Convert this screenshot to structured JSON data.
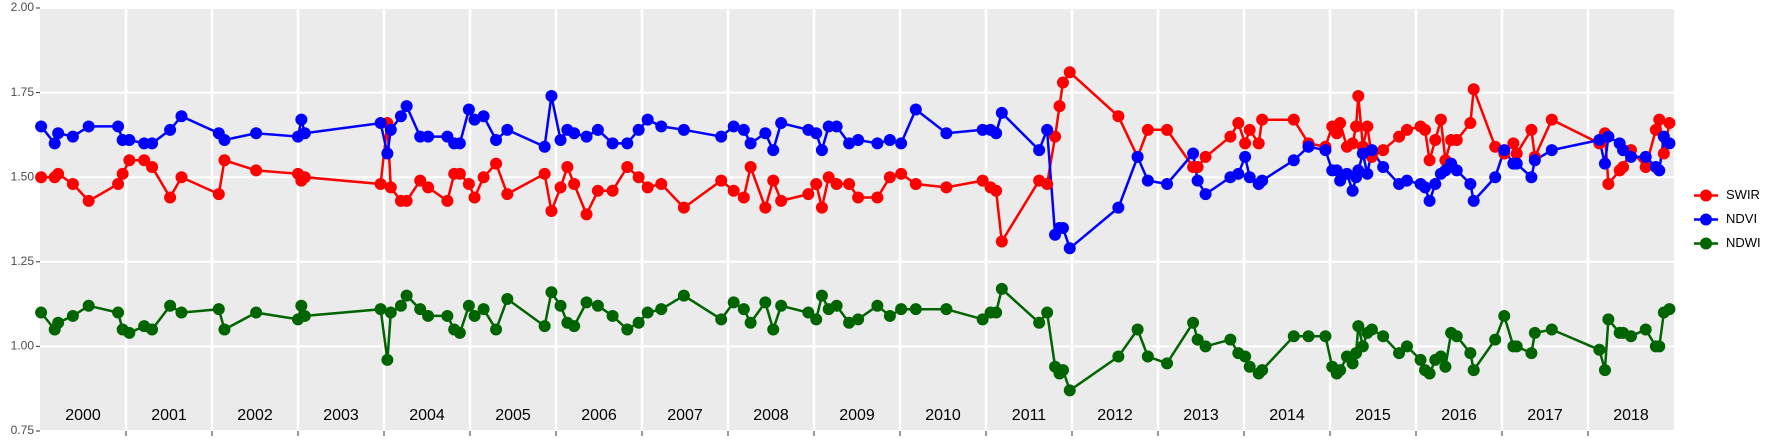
{
  "chart_data": {
    "type": "line",
    "x": [
      2000.013,
      2000.171,
      2000.211,
      2000.382,
      2000.566,
      2000.908,
      2000.961,
      2001.039,
      2001.211,
      2001.303,
      2001.513,
      2001.645,
      2002.079,
      2002.145,
      2002.513,
      2003.0,
      2003.039,
      2003.079,
      2003.961,
      2004.039,
      2004.079,
      2004.197,
      2004.263,
      2004.421,
      2004.513,
      2004.737,
      2004.816,
      2004.882,
      2004.987,
      2005.053,
      2005.158,
      2005.303,
      2005.434,
      2005.868,
      2005.947,
      2006.053,
      2006.132,
      2006.211,
      2006.355,
      2006.487,
      2006.658,
      2006.829,
      2006.961,
      2007.066,
      2007.224,
      2007.487,
      2007.921,
      2008.066,
      2008.184,
      2008.263,
      2008.434,
      2008.526,
      2008.618,
      2008.934,
      2009.026,
      2009.092,
      2009.171,
      2009.263,
      2009.408,
      2009.513,
      2009.737,
      2009.882,
      2010.013,
      2010.184,
      2010.539,
      2010.961,
      2011.053,
      2011.118,
      2011.184,
      2011.618,
      2011.711,
      2011.803,
      2011.855,
      2011.895,
      2011.974,
      2012.539,
      2012.763,
      2012.882,
      2013.105,
      2013.408,
      2013.461,
      2013.553,
      2013.842,
      2013.934,
      2014.013,
      2014.066,
      2014.171,
      2014.211,
      2014.579,
      2014.75,
      2014.947,
      2015.026,
      2015.079,
      2015.118,
      2015.197,
      2015.263,
      2015.303,
      2015.329,
      2015.382,
      2015.434,
      2015.487,
      2015.618,
      2015.803,
      2015.895,
      2016.053,
      2016.105,
      2016.158,
      2016.224,
      2016.289,
      2016.342,
      2016.408,
      2016.474,
      2016.632,
      2016.671,
      2016.921,
      2017.026,
      2017.132,
      2017.171,
      2017.342,
      2017.382,
      2017.579,
      2018.132,
      2018.197,
      2018.237,
      2018.368,
      2018.408,
      2018.5,
      2018.671,
      2018.789,
      2018.829,
      2018.882,
      2018.947
    ],
    "series": [
      {
        "name": "SWIR",
        "color": "#ff0000",
        "values": [
          1.5,
          1.5,
          1.51,
          1.48,
          1.43,
          1.48,
          1.51,
          1.55,
          1.55,
          1.53,
          1.44,
          1.5,
          1.45,
          1.55,
          1.52,
          1.51,
          1.49,
          1.5,
          1.48,
          1.66,
          1.47,
          1.43,
          1.43,
          1.49,
          1.47,
          1.43,
          1.51,
          1.51,
          1.48,
          1.44,
          1.5,
          1.54,
          1.45,
          1.51,
          1.4,
          1.47,
          1.53,
          1.48,
          1.39,
          1.46,
          1.46,
          1.53,
          1.5,
          1.47,
          1.48,
          1.41,
          1.49,
          1.46,
          1.44,
          1.53,
          1.41,
          1.49,
          1.43,
          1.45,
          1.48,
          1.41,
          1.5,
          1.48,
          1.48,
          1.44,
          1.44,
          1.5,
          1.51,
          1.48,
          1.47,
          1.49,
          1.47,
          1.46,
          1.31,
          1.49,
          1.48,
          1.62,
          1.71,
          1.78,
          1.81,
          1.68,
          1.56,
          1.64,
          1.64,
          1.53,
          1.53,
          1.56,
          1.62,
          1.66,
          1.6,
          1.64,
          1.6,
          1.67,
          1.67,
          1.6,
          1.59,
          1.65,
          1.63,
          1.66,
          1.59,
          1.6,
          1.65,
          1.74,
          1.59,
          1.65,
          1.56,
          1.58,
          1.62,
          1.64,
          1.65,
          1.64,
          1.55,
          1.61,
          1.67,
          1.55,
          1.61,
          1.61,
          1.66,
          1.76,
          1.59,
          1.57,
          1.6,
          1.57,
          1.64,
          1.56,
          1.67,
          1.6,
          1.63,
          1.48,
          1.52,
          1.53,
          1.58,
          1.53,
          1.64,
          1.67,
          1.57,
          1.66
        ]
      },
      {
        "name": "NDVI",
        "color": "#0000ff",
        "values": [
          1.65,
          1.6,
          1.63,
          1.62,
          1.65,
          1.65,
          1.61,
          1.61,
          1.6,
          1.6,
          1.64,
          1.68,
          1.63,
          1.61,
          1.63,
          1.62,
          1.67,
          1.63,
          1.66,
          1.57,
          1.64,
          1.68,
          1.71,
          1.62,
          1.62,
          1.62,
          1.6,
          1.6,
          1.7,
          1.67,
          1.68,
          1.61,
          1.64,
          1.59,
          1.74,
          1.61,
          1.64,
          1.63,
          1.62,
          1.64,
          1.6,
          1.6,
          1.64,
          1.67,
          1.65,
          1.64,
          1.62,
          1.65,
          1.64,
          1.6,
          1.63,
          1.58,
          1.66,
          1.64,
          1.63,
          1.58,
          1.65,
          1.65,
          1.6,
          1.61,
          1.6,
          1.61,
          1.6,
          1.7,
          1.63,
          1.64,
          1.64,
          1.63,
          1.69,
          1.58,
          1.64,
          1.33,
          1.35,
          1.35,
          1.29,
          1.41,
          1.56,
          1.49,
          1.48,
          1.57,
          1.49,
          1.45,
          1.5,
          1.51,
          1.56,
          1.5,
          1.48,
          1.49,
          1.55,
          1.59,
          1.58,
          1.52,
          1.52,
          1.49,
          1.51,
          1.46,
          1.5,
          1.52,
          1.57,
          1.51,
          1.58,
          1.53,
          1.48,
          1.49,
          1.48,
          1.47,
          1.43,
          1.48,
          1.51,
          1.52,
          1.54,
          1.52,
          1.48,
          1.43,
          1.5,
          1.58,
          1.54,
          1.54,
          1.5,
          1.55,
          1.58,
          1.61,
          1.54,
          1.62,
          1.6,
          1.58,
          1.56,
          1.56,
          1.53,
          1.52,
          1.62,
          1.6
        ]
      },
      {
        "name": "NDWI",
        "color": "#006400",
        "values": [
          1.1,
          1.05,
          1.07,
          1.09,
          1.12,
          1.1,
          1.05,
          1.04,
          1.06,
          1.05,
          1.12,
          1.1,
          1.11,
          1.05,
          1.1,
          1.08,
          1.12,
          1.09,
          1.11,
          0.96,
          1.1,
          1.12,
          1.15,
          1.11,
          1.09,
          1.09,
          1.05,
          1.04,
          1.12,
          1.09,
          1.11,
          1.05,
          1.14,
          1.06,
          1.16,
          1.12,
          1.07,
          1.06,
          1.13,
          1.12,
          1.09,
          1.05,
          1.07,
          1.1,
          1.11,
          1.15,
          1.08,
          1.13,
          1.11,
          1.07,
          1.13,
          1.05,
          1.12,
          1.1,
          1.08,
          1.15,
          1.11,
          1.12,
          1.07,
          1.08,
          1.12,
          1.09,
          1.11,
          1.11,
          1.11,
          1.08,
          1.1,
          1.1,
          1.17,
          1.07,
          1.1,
          0.94,
          0.92,
          0.93,
          0.87,
          0.97,
          1.05,
          0.97,
          0.95,
          1.07,
          1.02,
          1.0,
          1.02,
          0.98,
          0.97,
          0.94,
          0.92,
          0.93,
          1.03,
          1.03,
          1.03,
          0.94,
          0.92,
          0.93,
          0.97,
          0.95,
          0.98,
          1.06,
          1.0,
          1.04,
          1.05,
          1.03,
          0.98,
          1.0,
          0.96,
          0.93,
          0.92,
          0.96,
          0.97,
          0.94,
          1.04,
          1.03,
          0.98,
          0.93,
          1.02,
          1.09,
          1.0,
          1.0,
          0.98,
          1.04,
          1.05,
          0.99,
          0.93,
          1.08,
          1.04,
          1.04,
          1.03,
          1.05,
          1.0,
          1.0,
          1.1,
          1.11
        ]
      }
    ],
    "xlim": [
      2000,
      2019
    ],
    "x_breaks": [
      2001,
      2002,
      2003,
      2004,
      2005,
      2006,
      2007,
      2008,
      2009,
      2010,
      2011,
      2012,
      2013,
      2014,
      2015,
      2016,
      2017,
      2018
    ],
    "xticks": [
      {
        "value": 2000.5,
        "label": "2000"
      },
      {
        "value": 2001.5,
        "label": "2001"
      },
      {
        "value": 2002.5,
        "label": "2002"
      },
      {
        "value": 2003.5,
        "label": "2003"
      },
      {
        "value": 2004.5,
        "label": "2004"
      },
      {
        "value": 2005.5,
        "label": "2005"
      },
      {
        "value": 2006.5,
        "label": "2006"
      },
      {
        "value": 2007.5,
        "label": "2007"
      },
      {
        "value": 2008.5,
        "label": "2008"
      },
      {
        "value": 2009.5,
        "label": "2009"
      },
      {
        "value": 2010.5,
        "label": "2010"
      },
      {
        "value": 2011.5,
        "label": "2011"
      },
      {
        "value": 2012.5,
        "label": "2012"
      },
      {
        "value": 2013.5,
        "label": "2013"
      },
      {
        "value": 2014.5,
        "label": "2014"
      },
      {
        "value": 2015.5,
        "label": "2015"
      },
      {
        "value": 2016.5,
        "label": "2016"
      },
      {
        "value": 2017.5,
        "label": "2017"
      },
      {
        "value": 2018.5,
        "label": "2018"
      }
    ],
    "ylim": [
      0.75,
      2.0
    ],
    "yticks": [
      {
        "value": 0.75,
        "label": "0.75"
      },
      {
        "value": 1.0,
        "label": "1.00"
      },
      {
        "value": 1.25,
        "label": "1.25"
      },
      {
        "value": 1.5,
        "label": "1.50"
      },
      {
        "value": 1.75,
        "label": "1.75"
      },
      {
        "value": 2.0,
        "label": "2.00"
      }
    ],
    "grid": true,
    "legend": "right"
  }
}
